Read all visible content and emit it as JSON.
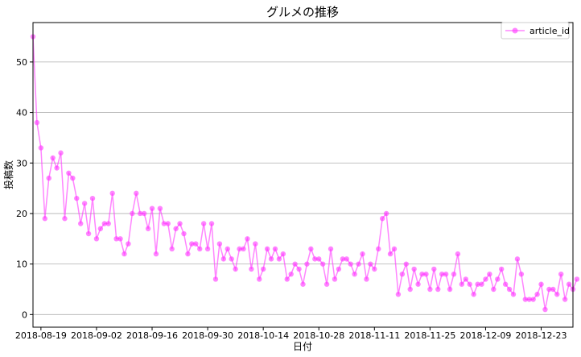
{
  "chart_data": {
    "type": "line",
    "title": "グルメの推移",
    "xlabel": "日付",
    "ylabel": "投稿数",
    "legend": {
      "placement": "top-right",
      "entries": [
        "article_id"
      ]
    },
    "grid": {
      "y": true,
      "x": false
    },
    "color": "#ff33ff",
    "ylim": [
      -2.5,
      57.8
    ],
    "xlim": [
      "2018-08-17",
      "2018-12-31"
    ],
    "yticks": [
      0,
      10,
      20,
      30,
      40,
      50
    ],
    "xticks": [
      "2018-08-19",
      "2018-09-02",
      "2018-09-16",
      "2018-09-30",
      "2018-10-14",
      "2018-10-28",
      "2018-11-11",
      "2018-11-25",
      "2018-12-09",
      "2018-12-23"
    ],
    "x_start": "2018-08-17",
    "series": [
      {
        "name": "article_id",
        "values": [
          55,
          38,
          33,
          19,
          27,
          31,
          29,
          32,
          19,
          28,
          27,
          23,
          18,
          22,
          16,
          23,
          15,
          17,
          18,
          18,
          24,
          15,
          15,
          12,
          14,
          20,
          24,
          20,
          20,
          17,
          21,
          12,
          21,
          18,
          18,
          13,
          17,
          18,
          16,
          12,
          14,
          14,
          13,
          18,
          13,
          18,
          7,
          14,
          11,
          13,
          11,
          9,
          13,
          13,
          15,
          9,
          14,
          7,
          9,
          13,
          11,
          13,
          11,
          12,
          7,
          8,
          10,
          9,
          6,
          10,
          13,
          11,
          11,
          10,
          6,
          13,
          7,
          9,
          11,
          11,
          10,
          8,
          10,
          12,
          7,
          10,
          9,
          13,
          19,
          20,
          12,
          13,
          4,
          8,
          10,
          5,
          9,
          6,
          8,
          8,
          5,
          9,
          5,
          8,
          8,
          5,
          8,
          12,
          6,
          7,
          6,
          4,
          6,
          6,
          7,
          8,
          5,
          7,
          9,
          6,
          5,
          4,
          11,
          8,
          3,
          3,
          3,
          4,
          6,
          1,
          5,
          5,
          4,
          8,
          3,
          6,
          5,
          7
        ]
      }
    ]
  }
}
